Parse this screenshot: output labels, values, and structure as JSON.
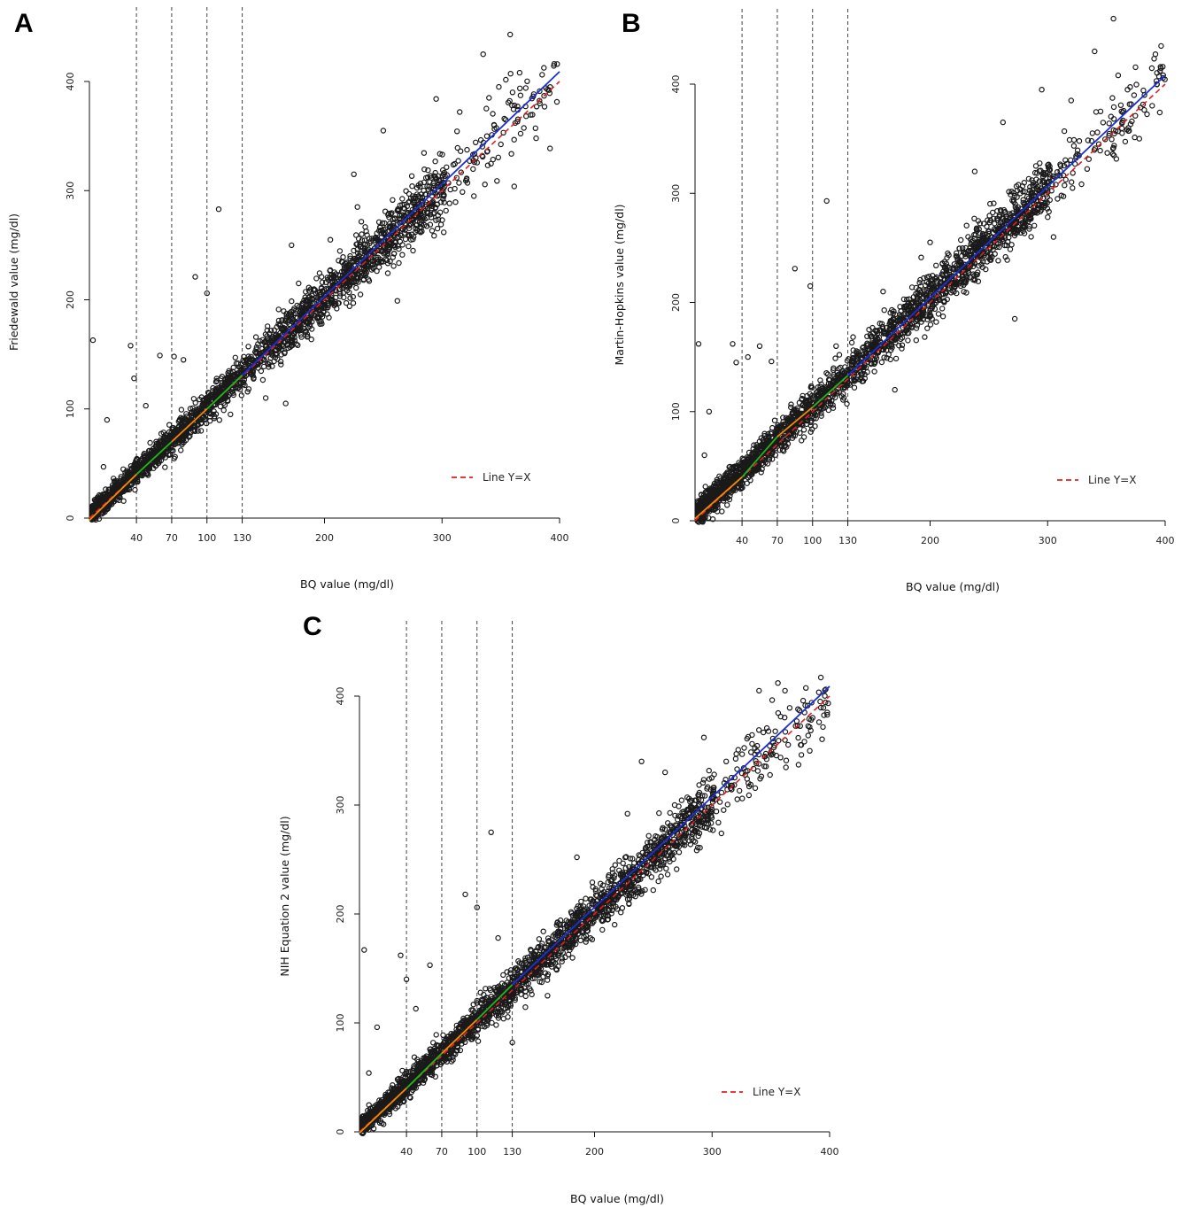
{
  "chart_data": [
    {
      "type": "scatter",
      "panel": "A",
      "xlabel": "BQ value (mg/dl)",
      "ylabel": "Friedewald value (mg/dl)",
      "xlim": [
        0,
        400
      ],
      "ylim": [
        0,
        400
      ],
      "xticks": [
        40,
        70,
        100,
        130,
        200,
        300,
        400
      ],
      "yticks": [
        0,
        100,
        200,
        300,
        400
      ],
      "vlines": [
        40,
        70,
        100,
        130
      ],
      "legend": {
        "label": "Line Y=X",
        "position": "bottom-right"
      },
      "reference_line": {
        "name": "Line Y=X",
        "color": "#e0201c",
        "style": "dashed",
        "x": [
          0,
          400
        ],
        "y": [
          0,
          400
        ]
      },
      "fit_segments": [
        {
          "range": [
            0,
            40
          ],
          "color": "#f08a00",
          "y_at": [
            -2,
            40
          ]
        },
        {
          "range": [
            40,
            70
          ],
          "color": "#1fb51f",
          "y_at": [
            40,
            70
          ]
        },
        {
          "range": [
            70,
            100
          ],
          "color": "#f08a00",
          "y_at": [
            70,
            100
          ]
        },
        {
          "range": [
            100,
            130
          ],
          "color": "#1fb51f",
          "y_at": [
            100,
            131
          ]
        },
        {
          "range": [
            130,
            400
          ],
          "color": "#1a2fd6",
          "y_at": [
            131,
            409
          ]
        }
      ],
      "outliers": [
        [
          3,
          163
        ],
        [
          15,
          90
        ],
        [
          12,
          47
        ],
        [
          35,
          158
        ],
        [
          38,
          128
        ],
        [
          60,
          149
        ],
        [
          48,
          103
        ],
        [
          72,
          148
        ],
        [
          80,
          145
        ],
        [
          90,
          221
        ],
        [
          100,
          206
        ],
        [
          110,
          283
        ],
        [
          118,
          133
        ],
        [
          167,
          105
        ],
        [
          150,
          110
        ],
        [
          178,
          215
        ],
        [
          172,
          250
        ],
        [
          205,
          255
        ],
        [
          225,
          315
        ],
        [
          228,
          285
        ],
        [
          250,
          355
        ],
        [
          262,
          199
        ],
        [
          295,
          384
        ],
        [
          275,
          295
        ],
        [
          300,
          305
        ],
        [
          315,
          372
        ],
        [
          340,
          385
        ],
        [
          335,
          425
        ],
        [
          358,
          443
        ],
        [
          360,
          390
        ],
        [
          366,
          408
        ],
        [
          380,
          348
        ],
        [
          392,
          395
        ],
        [
          398,
          416
        ],
        [
          95,
          80
        ],
        [
          120,
          95
        ]
      ],
      "cloud": {
        "n": 2400,
        "x_max": 400,
        "noise_sd": [
          4,
          18
        ],
        "y_offset": 2
      }
    },
    {
      "type": "scatter",
      "panel": "B",
      "xlabel": "BQ value (mg/dl)",
      "ylabel": "Martin-Hopkins value (mg/dl)",
      "xlim": [
        0,
        400
      ],
      "ylim": [
        0,
        400
      ],
      "xticks": [
        40,
        70,
        100,
        130,
        200,
        300,
        400
      ],
      "yticks": [
        0,
        100,
        200,
        300,
        400
      ],
      "vlines": [
        40,
        70,
        100,
        130
      ],
      "legend": {
        "label": "Line Y=X",
        "position": "bottom-right"
      },
      "reference_line": {
        "name": "Line Y=X",
        "color": "#e0201c",
        "style": "dashed",
        "x": [
          0,
          400
        ],
        "y": [
          0,
          400
        ]
      },
      "fit_segments": [
        {
          "range": [
            0,
            40
          ],
          "color": "#f08a00",
          "y_at": [
            2,
            40
          ]
        },
        {
          "range": [
            40,
            70
          ],
          "color": "#1fb51f",
          "y_at": [
            40,
            77
          ]
        },
        {
          "range": [
            70,
            100
          ],
          "color": "#f08a00",
          "y_at": [
            77,
            104
          ]
        },
        {
          "range": [
            100,
            130
          ],
          "color": "#1fb51f",
          "y_at": [
            104,
            133
          ]
        },
        {
          "range": [
            130,
            400
          ],
          "color": "#1a2fd6",
          "y_at": [
            133,
            408
          ]
        }
      ],
      "outliers": [
        [
          3,
          162
        ],
        [
          12,
          100
        ],
        [
          8,
          60
        ],
        [
          32,
          162
        ],
        [
          35,
          145
        ],
        [
          45,
          150
        ],
        [
          55,
          160
        ],
        [
          65,
          146
        ],
        [
          85,
          231
        ],
        [
          98,
          215
        ],
        [
          112,
          293
        ],
        [
          120,
          160
        ],
        [
          170,
          120
        ],
        [
          160,
          210
        ],
        [
          200,
          255
        ],
        [
          215,
          245
        ],
        [
          238,
          320
        ],
        [
          262,
          365
        ],
        [
          272,
          185
        ],
        [
          295,
          395
        ],
        [
          290,
          325
        ],
        [
          305,
          260
        ],
        [
          320,
          385
        ],
        [
          345,
          375
        ],
        [
          340,
          430
        ],
        [
          356,
          460
        ],
        [
          360,
          408
        ],
        [
          368,
          395
        ],
        [
          378,
          350
        ],
        [
          393,
          400
        ],
        [
          398,
          416
        ],
        [
          96,
          92
        ]
      ],
      "cloud": {
        "n": 2400,
        "x_max": 400,
        "noise_sd": [
          6,
          16
        ],
        "y_offset": 5
      }
    },
    {
      "type": "scatter",
      "panel": "C",
      "xlabel": "BQ value (mg/dl)",
      "ylabel": "NIH Equation 2 value (mg/dl)",
      "xlim": [
        0,
        400
      ],
      "ylim": [
        0,
        400
      ],
      "xticks": [
        40,
        70,
        100,
        130,
        200,
        300,
        400
      ],
      "yticks": [
        0,
        100,
        200,
        300,
        400
      ],
      "vlines": [
        40,
        70,
        100,
        130
      ],
      "legend": {
        "label": "Line Y=X",
        "position": "bottom-right"
      },
      "reference_line": {
        "name": "Line Y=X",
        "color": "#e0201c",
        "style": "dashed",
        "x": [
          0,
          400
        ],
        "y": [
          0,
          400
        ]
      },
      "fit_segments": [
        {
          "range": [
            0,
            40
          ],
          "color": "#f08a00",
          "y_at": [
            -1,
            40
          ]
        },
        {
          "range": [
            40,
            70
          ],
          "color": "#1fb51f",
          "y_at": [
            40,
            72
          ]
        },
        {
          "range": [
            70,
            100
          ],
          "color": "#f08a00",
          "y_at": [
            72,
            103
          ]
        },
        {
          "range": [
            100,
            130
          ],
          "color": "#1fb51f",
          "y_at": [
            103,
            135
          ]
        },
        {
          "range": [
            130,
            400
          ],
          "color": "#1a2fd6",
          "y_at": [
            135,
            409
          ]
        }
      ],
      "outliers": [
        [
          4,
          167
        ],
        [
          15,
          96
        ],
        [
          8,
          54
        ],
        [
          35,
          162
        ],
        [
          40,
          140
        ],
        [
          60,
          153
        ],
        [
          48,
          113
        ],
        [
          90,
          218
        ],
        [
          100,
          206
        ],
        [
          112,
          275
        ],
        [
          118,
          178
        ],
        [
          160,
          125
        ],
        [
          185,
          252
        ],
        [
          170,
          175
        ],
        [
          240,
          340
        ],
        [
          228,
          292
        ],
        [
          260,
          330
        ],
        [
          293,
          362
        ],
        [
          312,
          340
        ],
        [
          340,
          405
        ],
        [
          356,
          412
        ],
        [
          362,
          405
        ],
        [
          376,
          346
        ],
        [
          392,
          395
        ],
        [
          398,
          385
        ],
        [
          95,
          85
        ],
        [
          130,
          82
        ]
      ],
      "cloud": {
        "n": 2400,
        "x_max": 400,
        "noise_sd": [
          4,
          17
        ],
        "y_offset": 3
      }
    }
  ]
}
